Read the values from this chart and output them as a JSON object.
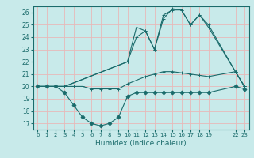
{
  "xlabel": "Humidex (Indice chaleur)",
  "bg_color": "#c8eaea",
  "grid_color": "#e8b8b8",
  "line_color": "#1a6b6b",
  "ylim": [
    16.5,
    26.5
  ],
  "xlim": [
    -0.5,
    23.5
  ],
  "yticks": [
    17,
    18,
    19,
    20,
    21,
    22,
    23,
    24,
    25,
    26
  ],
  "lines": [
    {
      "x": [
        0,
        1,
        2,
        3,
        4,
        5,
        6,
        7,
        8,
        9,
        10,
        11,
        12,
        13,
        14,
        15,
        16,
        17,
        18,
        19,
        22,
        23
      ],
      "y": [
        20,
        20,
        20,
        19.5,
        18.5,
        17.5,
        17.0,
        16.8,
        17.0,
        17.5,
        19.2,
        19.5,
        19.5,
        19.5,
        19.5,
        19.5,
        19.5,
        19.5,
        19.5,
        19.5,
        20.0,
        19.8
      ],
      "marker": "D",
      "markersize": 2.5
    },
    {
      "x": [
        0,
        1,
        2,
        3,
        4,
        5,
        6,
        7,
        8,
        9,
        10,
        11,
        12,
        13,
        14,
        15,
        16,
        17,
        18,
        19,
        22,
        23
      ],
      "y": [
        20,
        20,
        20,
        20.0,
        20.0,
        20.0,
        19.8,
        19.8,
        19.8,
        19.8,
        20.2,
        20.5,
        20.8,
        21.0,
        21.2,
        21.2,
        21.1,
        21.0,
        20.9,
        20.8,
        21.2,
        20.0
      ],
      "marker": "+",
      "markersize": 3.5
    },
    {
      "x": [
        0,
        1,
        2,
        3,
        10,
        11,
        12,
        13,
        14,
        15,
        16,
        17,
        18,
        19,
        22,
        23
      ],
      "y": [
        20,
        20,
        20,
        20,
        22.0,
        24.8,
        24.5,
        23.0,
        25.8,
        26.2,
        26.2,
        25.0,
        25.8,
        24.8,
        21.2,
        20.0
      ],
      "marker": "+",
      "markersize": 3.5
    },
    {
      "x": [
        0,
        1,
        2,
        3,
        10,
        11,
        12,
        13,
        14,
        15,
        16,
        17,
        18,
        19,
        22,
        23
      ],
      "y": [
        20,
        20,
        20,
        20,
        22.0,
        24.0,
        24.5,
        23.0,
        25.5,
        26.3,
        26.2,
        25.0,
        25.8,
        25.0,
        21.2,
        20.0
      ],
      "marker": "+",
      "markersize": 3.5
    }
  ]
}
